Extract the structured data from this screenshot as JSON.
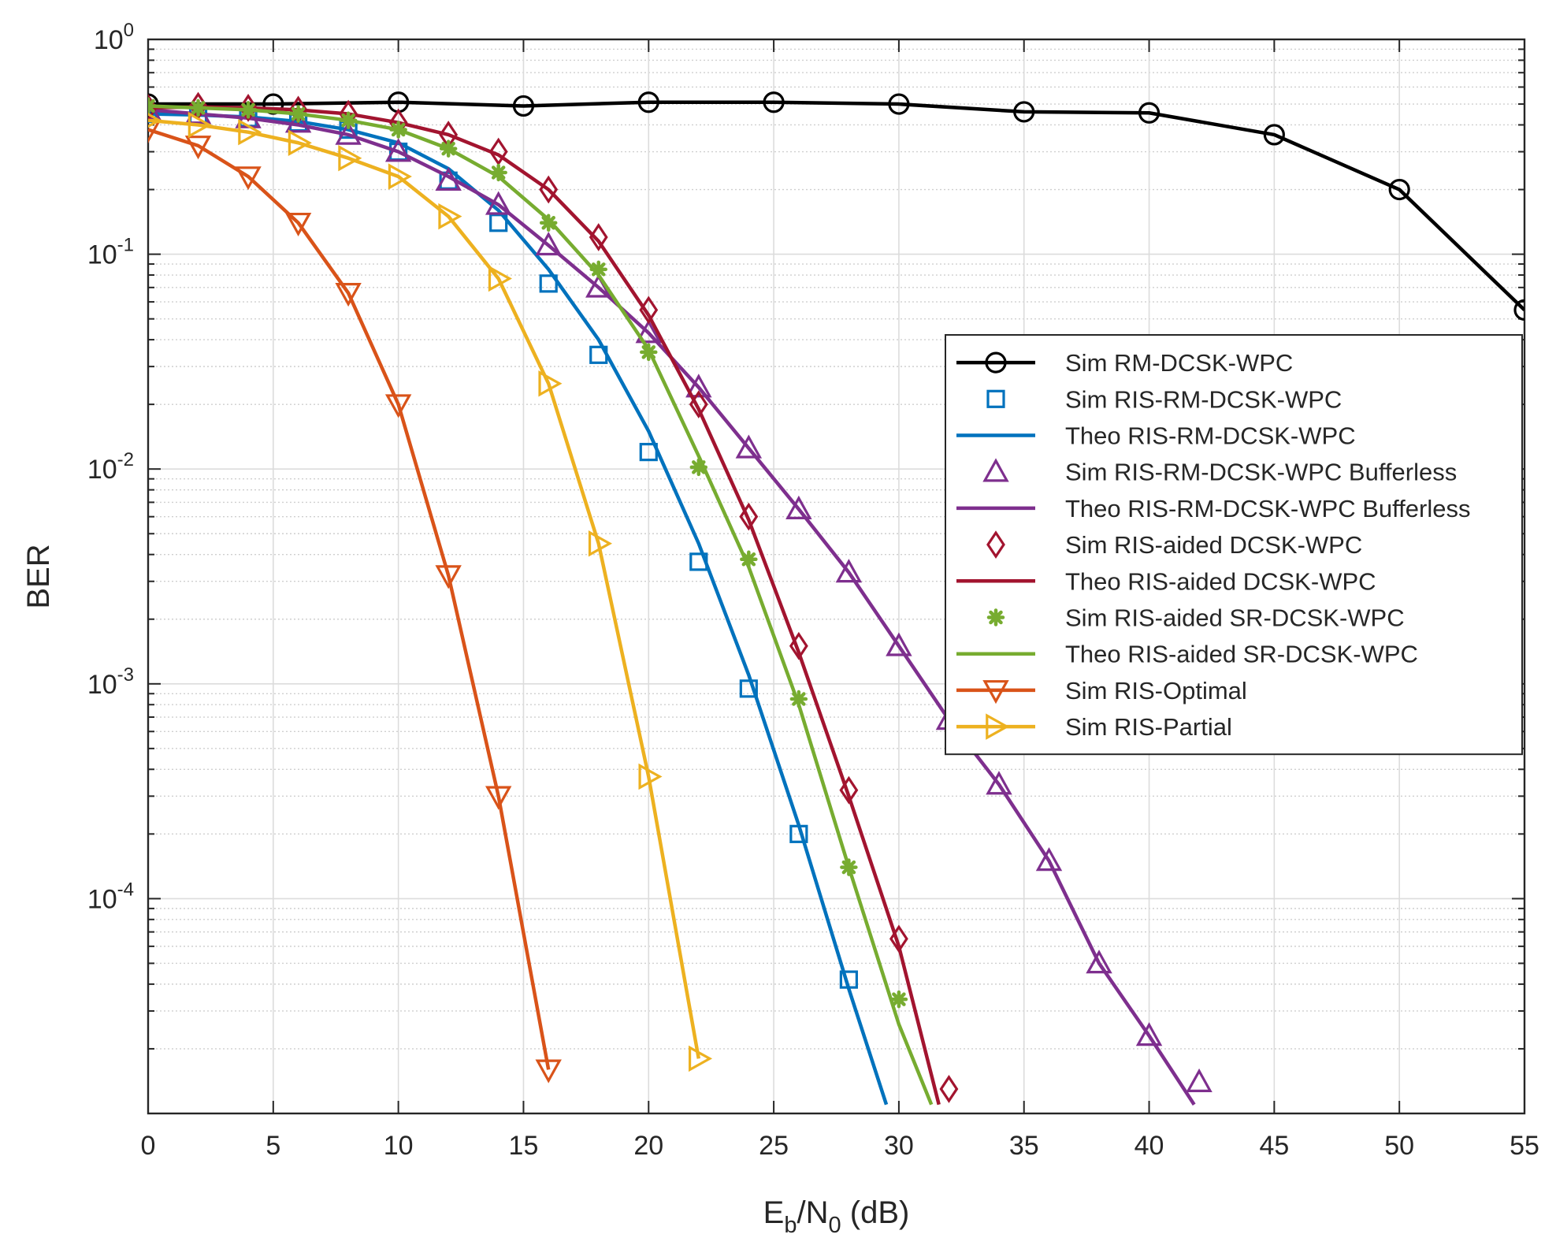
{
  "chart_data": {
    "type": "line",
    "xscale": "linear",
    "yscale": "log",
    "title": "",
    "xlabel": {
      "main": "E",
      "sub1": "b",
      "mid": "/N",
      "sub2": "0",
      "tail": " (dB)"
    },
    "ylabel": "BER",
    "xlim": [
      0,
      55
    ],
    "ylim": [
      1e-05,
      1
    ],
    "grid": true,
    "minor_grid": true,
    "legend_location": "east",
    "xticks": [
      0,
      5,
      10,
      15,
      20,
      25,
      30,
      35,
      40,
      45,
      50,
      55
    ],
    "xtick_labels": [
      "0",
      "5",
      "10",
      "15",
      "20",
      "25",
      "30",
      "35",
      "40",
      "45",
      "50",
      "55"
    ],
    "yticks": [
      1,
      0.1,
      0.01,
      0.001,
      0.0001
    ],
    "ytick_labels": [
      {
        "base": "10",
        "exp": "0"
      },
      {
        "base": "10",
        "exp": "-1"
      },
      {
        "base": "10",
        "exp": "-2"
      },
      {
        "base": "10",
        "exp": "-3"
      },
      {
        "base": "10",
        "exp": "-4"
      }
    ],
    "series": [
      {
        "name": "Sim RM-DCSK-WPC",
        "color": "#000000",
        "marker": "circle",
        "line": true,
        "x": [
          0,
          5,
          10,
          15,
          20,
          25,
          30,
          35,
          40,
          45,
          50,
          55
        ],
        "y": [
          0.5,
          0.5,
          0.51,
          0.49,
          0.51,
          0.51,
          0.5,
          0.46,
          0.455,
          0.36,
          0.2,
          0.055
        ]
      },
      {
        "name": "Sim RIS-RM-DCSK-WPC",
        "color": "#0072BD",
        "marker": "square",
        "line": false,
        "x": [
          0,
          2,
          4,
          6,
          8,
          10,
          12,
          14,
          16,
          18,
          20,
          22,
          24,
          26,
          28
        ],
        "y": [
          0.45,
          0.44,
          0.43,
          0.41,
          0.38,
          0.3,
          0.22,
          0.14,
          0.073,
          0.034,
          0.012,
          0.0037,
          0.00095,
          0.0002,
          4.2e-05
        ]
      },
      {
        "name": "Theo RIS-RM-DCSK-WPC",
        "color": "#0072BD",
        "marker": "none",
        "line": true,
        "x": [
          0,
          2,
          4,
          6,
          8,
          10,
          12,
          14,
          16,
          18,
          20,
          22,
          24,
          26,
          28,
          29.5
        ],
        "y": [
          0.45,
          0.445,
          0.435,
          0.415,
          0.38,
          0.33,
          0.25,
          0.16,
          0.085,
          0.04,
          0.015,
          0.0045,
          0.0011,
          0.00022,
          3.8e-05,
          1.1e-05
        ]
      },
      {
        "name": "Sim RIS-RM-DCSK-WPC Bufferless",
        "color": "#7E2F8E",
        "marker": "triangle-up",
        "line": false,
        "x": [
          0,
          2,
          4,
          6,
          8,
          10,
          12,
          14,
          16,
          18,
          20,
          22,
          24,
          26,
          28,
          30,
          32,
          34,
          36,
          38,
          40,
          42
        ],
        "y": [
          0.47,
          0.45,
          0.43,
          0.41,
          0.36,
          0.3,
          0.22,
          0.17,
          0.11,
          0.07,
          0.043,
          0.024,
          0.0125,
          0.0065,
          0.0033,
          0.0015,
          0.00068,
          0.00034,
          0.00015,
          5e-05,
          2.3e-05,
          1.4e-05
        ]
      },
      {
        "name": "Theo RIS-RM-DCSK-WPC Bufferless",
        "color": "#7E2F8E",
        "marker": "none",
        "line": true,
        "x": [
          0,
          2,
          4,
          6,
          8,
          10,
          12,
          14,
          16,
          18,
          20,
          22,
          24,
          26,
          28,
          30,
          32,
          34,
          36,
          38,
          40,
          41.8
        ],
        "y": [
          0.47,
          0.45,
          0.43,
          0.4,
          0.36,
          0.3,
          0.23,
          0.17,
          0.11,
          0.07,
          0.043,
          0.024,
          0.0125,
          0.0065,
          0.0033,
          0.0015,
          0.00068,
          0.00034,
          0.00015,
          5e-05,
          2.3e-05,
          1.1e-05
        ]
      },
      {
        "name": "Sim RIS-aided DCSK-WPC",
        "color": "#A2142F",
        "marker": "diamond",
        "line": false,
        "x": [
          0,
          2,
          4,
          6,
          8,
          10,
          12,
          14,
          16,
          18,
          20,
          22,
          24,
          26,
          28,
          30,
          32
        ],
        "y": [
          0.48,
          0.49,
          0.48,
          0.47,
          0.45,
          0.41,
          0.36,
          0.3,
          0.2,
          0.12,
          0.055,
          0.02,
          0.006,
          0.0015,
          0.00032,
          6.5e-05,
          1.3e-05
        ]
      },
      {
        "name": "Theo RIS-aided DCSK-WPC",
        "color": "#A2142F",
        "marker": "none",
        "line": true,
        "x": [
          0,
          2,
          4,
          6,
          8,
          10,
          12,
          14,
          16,
          18,
          20,
          22,
          24,
          26,
          28,
          30,
          31.6
        ],
        "y": [
          0.48,
          0.485,
          0.48,
          0.47,
          0.45,
          0.41,
          0.36,
          0.29,
          0.2,
          0.115,
          0.052,
          0.019,
          0.0058,
          0.0014,
          0.0003,
          6e-05,
          1.1e-05
        ]
      },
      {
        "name": "Sim RIS-aided SR-DCSK-WPC",
        "color": "#77AC30",
        "marker": "asterisk",
        "line": false,
        "x": [
          0,
          2,
          4,
          6,
          8,
          10,
          12,
          14,
          16,
          18,
          20,
          22,
          24,
          26,
          28,
          30
        ],
        "y": [
          0.49,
          0.48,
          0.47,
          0.45,
          0.42,
          0.38,
          0.31,
          0.24,
          0.14,
          0.085,
          0.035,
          0.0102,
          0.0038,
          0.00085,
          0.00014,
          3.4e-05
        ]
      },
      {
        "name": "Theo RIS-aided SR-DCSK-WPC",
        "color": "#77AC30",
        "marker": "none",
        "line": true,
        "x": [
          0,
          2,
          4,
          6,
          8,
          10,
          12,
          14,
          16,
          18,
          20,
          22,
          24,
          26,
          28,
          30,
          31.3
        ],
        "y": [
          0.49,
          0.48,
          0.47,
          0.45,
          0.42,
          0.38,
          0.31,
          0.23,
          0.145,
          0.08,
          0.036,
          0.0115,
          0.0035,
          0.0008,
          0.00014,
          2.6e-05,
          1.1e-05
        ]
      },
      {
        "name": "Sim RIS-Optimal",
        "color": "#D95319",
        "marker": "triangle-down",
        "line": true,
        "x": [
          0,
          2,
          4,
          6,
          8,
          10,
          12,
          14,
          16
        ],
        "y": [
          0.38,
          0.32,
          0.23,
          0.14,
          0.066,
          0.02,
          0.0032,
          0.0003,
          1.6e-05
        ]
      },
      {
        "name": "Sim RIS-Partial",
        "color": "#EDB120",
        "marker": "triangle-right",
        "line": true,
        "x": [
          0,
          2,
          4,
          6,
          8,
          10,
          12,
          14,
          16,
          18,
          20,
          22
        ],
        "y": [
          0.42,
          0.4,
          0.37,
          0.33,
          0.28,
          0.23,
          0.15,
          0.077,
          0.025,
          0.0045,
          0.00037,
          1.8e-05
        ]
      }
    ]
  }
}
